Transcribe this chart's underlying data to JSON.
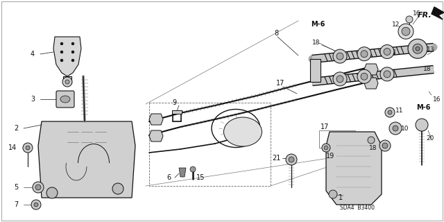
{
  "bg_color": "#ffffff",
  "line_color": "#111111",
  "text_color": "#111111",
  "model_code": "SDA4  B3400",
  "fig_width": 6.4,
  "fig_height": 3.2,
  "dpi": 100
}
